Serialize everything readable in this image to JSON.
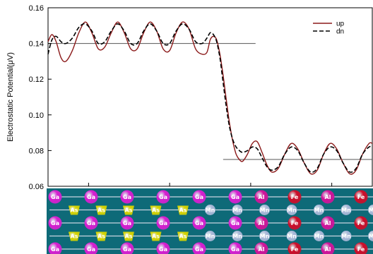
{
  "chart_data": {
    "type": "line",
    "title": "",
    "xlabel": "",
    "ylabel": "Electrostatic Potential(μV)",
    "xlim": [
      0,
      1
    ],
    "ylim": [
      0.06,
      0.16
    ],
    "yticks": [
      0.06,
      0.08,
      0.1,
      0.12,
      0.14,
      0.16
    ],
    "ytick_labels": [
      "0.06",
      "0.08",
      "0.10",
      "0.12",
      "0.14",
      "0.16"
    ],
    "grid": false,
    "legend": "top-right",
    "series": [
      {
        "name": "up",
        "color": "#8b1a1a",
        "style": "solid",
        "x": [
          0.0,
          0.012,
          0.025,
          0.04,
          0.055,
          0.075,
          0.095,
          0.115,
          0.135,
          0.155,
          0.175,
          0.195,
          0.215,
          0.235,
          0.255,
          0.275,
          0.295,
          0.315,
          0.335,
          0.355,
          0.375,
          0.395,
          0.415,
          0.435,
          0.455,
          0.475,
          0.49,
          0.5,
          0.51,
          0.52,
          0.53,
          0.54,
          0.55,
          0.56,
          0.57,
          0.58,
          0.59,
          0.6,
          0.615,
          0.63,
          0.645,
          0.66,
          0.675,
          0.69,
          0.71,
          0.73,
          0.75,
          0.77,
          0.79,
          0.81,
          0.83,
          0.85,
          0.87,
          0.89,
          0.91,
          0.93,
          0.95,
          0.97,
          0.99,
          1.0
        ],
        "y": [
          0.141,
          0.145,
          0.141,
          0.132,
          0.13,
          0.136,
          0.146,
          0.152,
          0.146,
          0.137,
          0.138,
          0.146,
          0.152,
          0.146,
          0.137,
          0.137,
          0.146,
          0.152,
          0.147,
          0.137,
          0.136,
          0.146,
          0.152,
          0.148,
          0.137,
          0.134,
          0.135,
          0.142,
          0.144,
          0.142,
          0.134,
          0.122,
          0.108,
          0.095,
          0.085,
          0.078,
          0.075,
          0.074,
          0.078,
          0.084,
          0.085,
          0.079,
          0.072,
          0.068,
          0.07,
          0.078,
          0.084,
          0.081,
          0.073,
          0.067,
          0.069,
          0.078,
          0.084,
          0.081,
          0.073,
          0.067,
          0.069,
          0.078,
          0.084,
          0.084
        ]
      },
      {
        "name": "dn",
        "color": "#000000",
        "style": "dashed",
        "x": [
          0.0,
          0.012,
          0.025,
          0.04,
          0.055,
          0.075,
          0.095,
          0.115,
          0.135,
          0.155,
          0.175,
          0.195,
          0.215,
          0.235,
          0.255,
          0.275,
          0.295,
          0.315,
          0.335,
          0.355,
          0.375,
          0.395,
          0.415,
          0.435,
          0.455,
          0.475,
          0.49,
          0.5,
          0.51,
          0.52,
          0.53,
          0.54,
          0.55,
          0.56,
          0.57,
          0.58,
          0.59,
          0.6,
          0.615,
          0.63,
          0.645,
          0.66,
          0.675,
          0.69,
          0.71,
          0.73,
          0.75,
          0.77,
          0.79,
          0.81,
          0.83,
          0.85,
          0.87,
          0.89,
          0.91,
          0.93,
          0.95,
          0.97,
          0.99,
          1.0
        ],
        "y": [
          0.134,
          0.142,
          0.144,
          0.141,
          0.14,
          0.143,
          0.149,
          0.151,
          0.147,
          0.14,
          0.141,
          0.147,
          0.151,
          0.147,
          0.14,
          0.14,
          0.147,
          0.151,
          0.147,
          0.14,
          0.14,
          0.147,
          0.151,
          0.148,
          0.141,
          0.14,
          0.143,
          0.146,
          0.145,
          0.141,
          0.132,
          0.118,
          0.104,
          0.093,
          0.086,
          0.082,
          0.08,
          0.079,
          0.08,
          0.082,
          0.081,
          0.076,
          0.071,
          0.069,
          0.071,
          0.078,
          0.082,
          0.08,
          0.073,
          0.068,
          0.07,
          0.078,
          0.082,
          0.08,
          0.073,
          0.068,
          0.07,
          0.078,
          0.082,
          0.082
        ]
      }
    ],
    "reference_lines": [
      {
        "y": 0.14,
        "x_range": [
          0.0,
          0.64
        ]
      },
      {
        "y": 0.075,
        "x_range": [
          0.54,
          1.0
        ]
      }
    ]
  },
  "structure": {
    "background": "#0e6a78",
    "rows": [
      [
        {
          "label": "Ga",
          "kind": "ga"
        },
        {
          "label": "Ga",
          "kind": "ga"
        },
        {
          "label": "Ga",
          "kind": "ga"
        },
        {
          "label": "Ga",
          "kind": "ga"
        },
        {
          "label": "Ga",
          "kind": "ga"
        },
        {
          "label": "Ga",
          "kind": "ga"
        },
        {
          "label": "Al",
          "kind": "al"
        },
        {
          "label": "Fe",
          "kind": "fe"
        },
        {
          "label": "Al",
          "kind": "al"
        },
        {
          "label": "Fe",
          "kind": "fe"
        },
        {
          "label": "Al",
          "kind": "al"
        }
      ],
      [
        {
          "label": "As",
          "kind": "as"
        },
        {
          "label": "As",
          "kind": "as"
        },
        {
          "label": "As",
          "kind": "as"
        },
        {
          "label": "As",
          "kind": "as"
        },
        {
          "label": "As",
          "kind": "as"
        },
        {
          "label": "Mn",
          "kind": "mn"
        },
        {
          "label": "Mn",
          "kind": "mn"
        },
        {
          "label": "Mn",
          "kind": "mn"
        },
        {
          "label": "Mn",
          "kind": "mn"
        },
        {
          "label": "Mn",
          "kind": "mn"
        },
        {
          "label": "Mn",
          "kind": "mn"
        },
        {
          "label": "Mn",
          "kind": "mn"
        }
      ],
      [
        {
          "label": "Ga",
          "kind": "ga"
        },
        {
          "label": "Ga",
          "kind": "ga"
        },
        {
          "label": "Ga",
          "kind": "ga"
        },
        {
          "label": "Ga",
          "kind": "ga"
        },
        {
          "label": "Ga",
          "kind": "ga"
        },
        {
          "label": "Ga",
          "kind": "ga"
        },
        {
          "label": "Al",
          "kind": "al"
        },
        {
          "label": "Fe",
          "kind": "fe"
        },
        {
          "label": "Al",
          "kind": "al"
        },
        {
          "label": "Fe",
          "kind": "fe"
        },
        {
          "label": "Al",
          "kind": "al"
        }
      ],
      [
        {
          "label": "As",
          "kind": "as"
        },
        {
          "label": "As",
          "kind": "as"
        },
        {
          "label": "As",
          "kind": "as"
        },
        {
          "label": "As",
          "kind": "as"
        },
        {
          "label": "As",
          "kind": "as"
        },
        {
          "label": "Mn",
          "kind": "mn"
        },
        {
          "label": "Mn",
          "kind": "mn"
        },
        {
          "label": "Mn",
          "kind": "mn"
        },
        {
          "label": "Mn",
          "kind": "mn"
        },
        {
          "label": "Mn",
          "kind": "mn"
        },
        {
          "label": "Mn",
          "kind": "mn"
        },
        {
          "label": "Mn",
          "kind": "mn"
        }
      ],
      [
        {
          "label": "Ga",
          "kind": "ga"
        },
        {
          "label": "Ga",
          "kind": "ga"
        },
        {
          "label": "Ga",
          "kind": "ga"
        },
        {
          "label": "Ga",
          "kind": "ga"
        },
        {
          "label": "Ga",
          "kind": "ga"
        },
        {
          "label": "Ga",
          "kind": "ga"
        },
        {
          "label": "Al",
          "kind": "al"
        },
        {
          "label": "Fe",
          "kind": "fe"
        },
        {
          "label": "Al",
          "kind": "al"
        },
        {
          "label": "Fe",
          "kind": "fe"
        },
        {
          "label": "Al",
          "kind": "al"
        }
      ]
    ],
    "colors": {
      "ga": "#d61fd0",
      "as": "#d8d400",
      "mn": "#a9b8d8",
      "fe": "#cc0e2a",
      "al": "#d0149a"
    }
  }
}
